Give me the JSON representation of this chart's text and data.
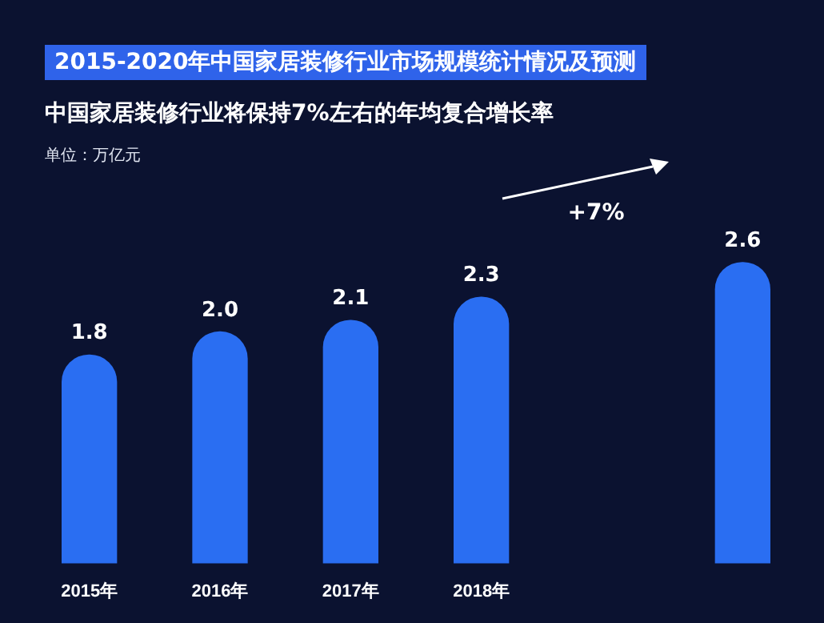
{
  "chart_data": {
    "type": "bar",
    "title": "2015-2020年中国家居装修行业市场规模统计情况及预测",
    "subtitle": "中国家居装修行业将保持7%左右的年均复合增长率",
    "categories": [
      "2015年",
      "2016年",
      "2017年",
      "2018年",
      null,
      null
    ],
    "values": [
      1.8,
      2.0,
      2.1,
      2.3,
      null,
      2.6
    ],
    "value_labels": [
      "1.8",
      "2.0",
      "2.1",
      "2.3",
      null,
      "2.6"
    ],
    "color": "#2a6ef2",
    "annotations": [
      "单位：万亿元",
      "+7%"
    ],
    "legend": false
  }
}
